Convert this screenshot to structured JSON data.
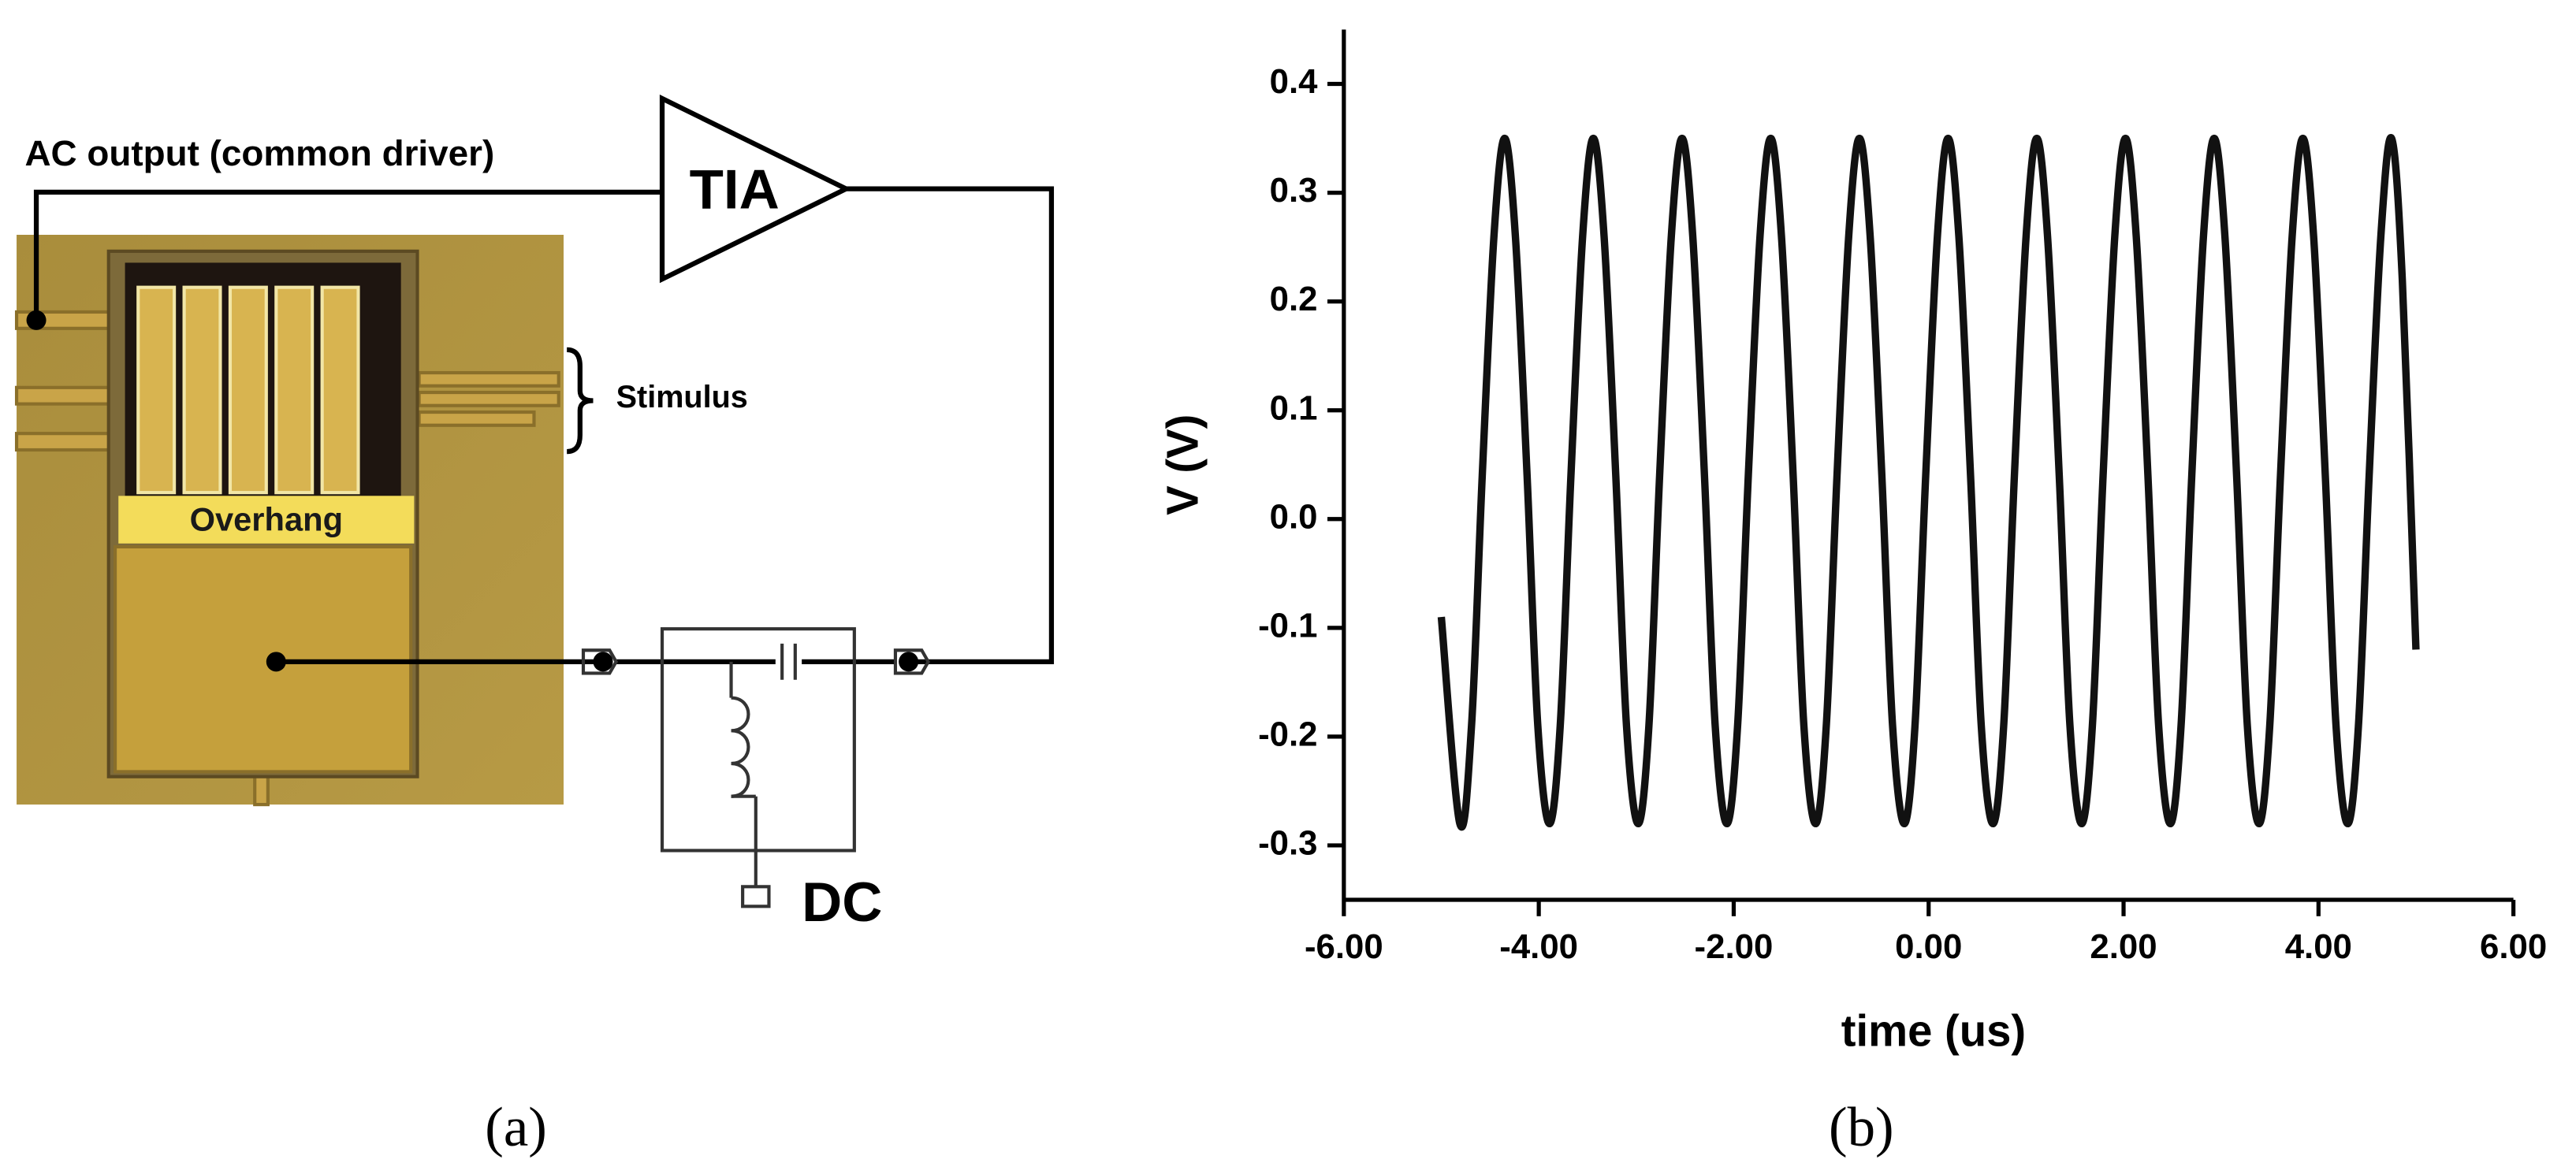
{
  "diagram": {
    "ac_output": "AC output (common driver)",
    "tia": "TIA",
    "stimulus": "Stimulus",
    "overhang": "Overhang",
    "dc": "DC"
  },
  "captions": [
    "(a)",
    "(b)"
  ],
  "chart_data": {
    "type": "line",
    "x_label": "time (us)",
    "y_label": "V (V)",
    "color": "#111111",
    "xlim": [
      -6,
      6
    ],
    "ylim": [
      -0.35,
      0.45
    ],
    "xticks": [
      {
        "value": -6,
        "label": "-6.00"
      },
      {
        "value": -4,
        "label": "-4.00"
      },
      {
        "value": -2,
        "label": "-2.00"
      },
      {
        "value": 0,
        "label": "0.00"
      },
      {
        "value": 2,
        "label": "2.00"
      },
      {
        "value": 4,
        "label": "4.00"
      },
      {
        "value": 6,
        "label": "6.00"
      }
    ],
    "yticks": [
      -0.3,
      -0.2,
      -0.1,
      {
        "value": 0,
        "label": "0.0"
      },
      0.1,
      0.2,
      0.3,
      0.4
    ],
    "x": [
      -5,
      -4.81,
      -4.69,
      -4.58,
      -4.46,
      -4.35,
      -4.24,
      -4.12,
      -4.01,
      -3.89,
      -3.78,
      -3.67,
      -3.55,
      -3.44,
      -3.33,
      -3.21,
      -3.1,
      -2.98,
      -2.87,
      -2.76,
      -2.64,
      -2.53,
      -2.42,
      -2.3,
      -2.19,
      -2.07,
      -1.96,
      -1.85,
      -1.73,
      -1.62,
      -1.51,
      -1.39,
      -1.28,
      -1.16,
      -1.05,
      -0.94,
      -0.82,
      -0.71,
      -0.6,
      -0.48,
      -0.37,
      -0.25,
      -0.14,
      -0.03,
      0.09,
      0.2,
      0.31,
      0.43,
      0.54,
      0.66,
      0.77,
      0.88,
      1.0,
      1.11,
      1.22,
      1.34,
      1.45,
      1.57,
      1.68,
      1.79,
      1.91,
      2.02,
      2.13,
      2.25,
      2.36,
      2.48,
      2.59,
      2.7,
      2.82,
      2.93,
      3.04,
      3.16,
      3.27,
      3.39,
      3.5,
      3.61,
      3.73,
      3.84,
      3.95,
      4.07,
      4.18,
      4.3,
      4.41,
      4.52,
      4.64,
      4.75,
      4.86,
      5.0
    ],
    "values": [
      -0.09,
      -0.28,
      -0.19,
      0.04,
      0.26,
      0.35,
      0.26,
      0.04,
      -0.19,
      -0.28,
      -0.19,
      0.04,
      0.26,
      0.35,
      0.26,
      0.04,
      -0.19,
      -0.28,
      -0.19,
      0.04,
      0.26,
      0.35,
      0.26,
      0.04,
      -0.19,
      -0.28,
      -0.19,
      0.04,
      0.26,
      0.35,
      0.26,
      0.04,
      -0.19,
      -0.28,
      -0.19,
      0.04,
      0.26,
      0.35,
      0.26,
      0.04,
      -0.19,
      -0.28,
      -0.19,
      0.04,
      0.26,
      0.35,
      0.26,
      0.04,
      -0.19,
      -0.28,
      -0.19,
      0.04,
      0.26,
      0.35,
      0.26,
      0.04,
      -0.19,
      -0.28,
      -0.19,
      0.04,
      0.26,
      0.35,
      0.26,
      0.04,
      -0.19,
      -0.28,
      -0.19,
      0.04,
      0.26,
      0.35,
      0.26,
      0.04,
      -0.19,
      -0.28,
      -0.19,
      0.04,
      0.26,
      0.35,
      0.26,
      0.04,
      -0.19,
      -0.28,
      -0.19,
      0.04,
      0.26,
      0.35,
      0.22,
      -0.12
    ]
  }
}
